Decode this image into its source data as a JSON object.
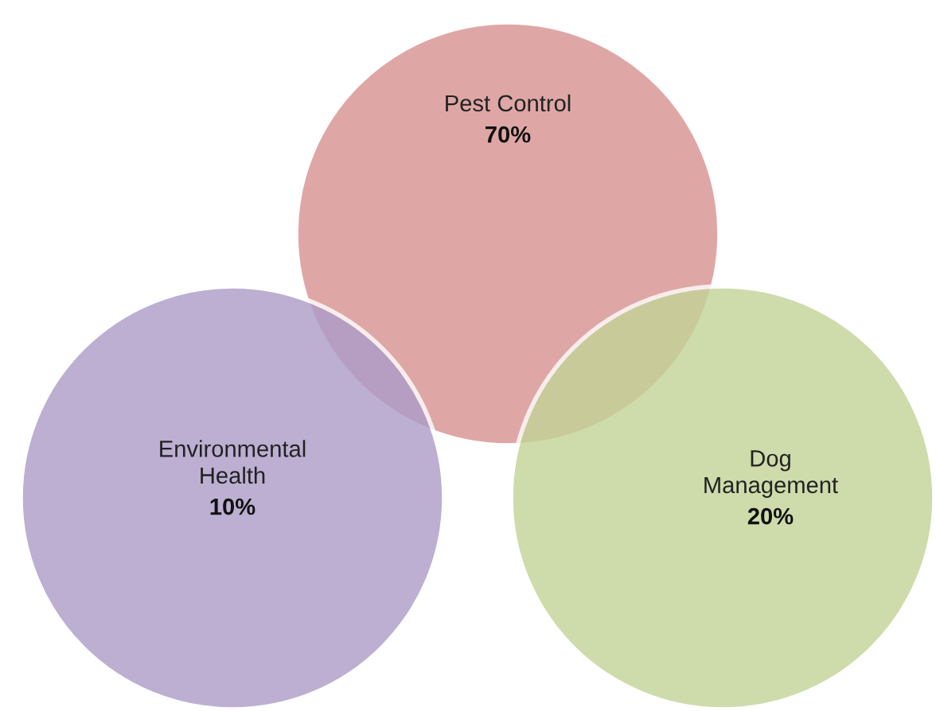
{
  "chart_data": {
    "type": "other",
    "categories": [
      "Pest Control",
      "Environmental\nHealth",
      "Dog\nManagement"
    ],
    "values": [
      70,
      10,
      20
    ],
    "value_labels": [
      "70%",
      "10%",
      "20%"
    ],
    "colors": [
      "#dfa8a6",
      "#bdb0d3",
      "#cfdcac"
    ]
  }
}
